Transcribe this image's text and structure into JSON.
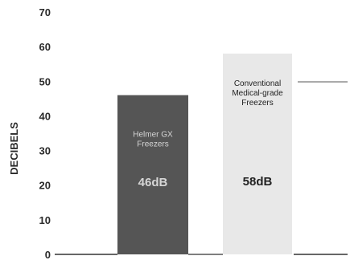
{
  "chart_data": {
    "type": "bar",
    "title": "",
    "xlabel": "",
    "ylabel": "DECIBELS",
    "ylim": [
      0,
      70
    ],
    "yticks": [
      0,
      10,
      20,
      30,
      40,
      50,
      60,
      70
    ],
    "grid": false,
    "legend": "none",
    "categories": [
      "Helmer GX Freezers",
      "Conventional Medical-grade Freezers"
    ],
    "values": [
      46,
      58
    ],
    "bar_labels": [
      [
        "Helmer GX",
        "Freezers"
      ],
      [
        "Conventional",
        "Medical-grade",
        "Freezers"
      ]
    ],
    "value_labels": [
      "46dB",
      "58dB"
    ],
    "colors": {
      "bars": [
        "#555555",
        "#e8e8e8"
      ],
      "bar_text": [
        "#d6d6d6",
        "#222222"
      ],
      "axis": "#333333",
      "reference_line": "#555555"
    }
  }
}
